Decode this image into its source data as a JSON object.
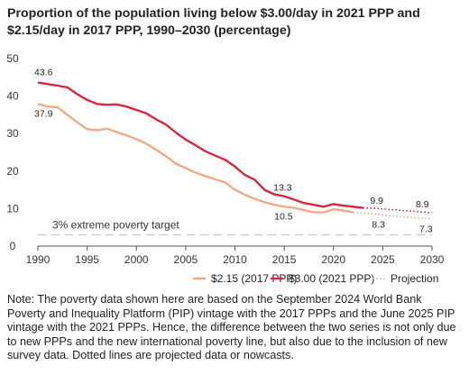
{
  "title": "Proportion of the population living below $3.00/day in 2021 PPP and $2.15/day in 2017 PPP, 1990–2030 (percentage)",
  "note": "Note: The poverty data shown here are based on the September 2024 World Bank Poverty and Inequality Platform (PIP) vintage with the 2017 PPPs and the June 2025 PIP vintage with the 2021 PPPs. Hence, the difference between the two series is not only due to new PPPs and the new international poverty line, but also due to the inclusion of new survey data. Dotted lines are projected data or nowcasts.",
  "colors": {
    "series_2017": "#eeaa88",
    "series_2021": "#d7263d",
    "projection": "#bdbdbd",
    "target": "#c8c8c8"
  },
  "chart_data": {
    "type": "line",
    "title": "Proportion of the population living below $3.00/day in 2021 PPP and $2.15/day in 2017 PPP, 1990–2030 (percentage)",
    "xlim": [
      1990,
      2030
    ],
    "ylim": [
      0,
      50
    ],
    "x_ticks": [
      1990,
      1995,
      2000,
      2005,
      2010,
      2015,
      2020,
      2025,
      2030
    ],
    "y_ticks": [
      0,
      10,
      20,
      30,
      40,
      50
    ],
    "grid": false,
    "legend_position": "bottom",
    "series": [
      {
        "name": "$2.15 (2017 PPP)",
        "color": "#eeaa88",
        "x": [
          1990,
          1991,
          1992,
          1993,
          1994,
          1995,
          1996,
          1997,
          1998,
          1999,
          2000,
          2001,
          2002,
          2003,
          2004,
          2005,
          2006,
          2007,
          2008,
          2009,
          2010,
          2011,
          2012,
          2013,
          2014,
          2015,
          2016,
          2017,
          2018,
          2019,
          2020,
          2021,
          2022
        ],
        "y": [
          37.9,
          37.2,
          37.0,
          35.0,
          33.0,
          31.2,
          30.9,
          31.3,
          30.4,
          29.5,
          28.5,
          27.3,
          25.7,
          24.0,
          22.0,
          20.8,
          19.6,
          18.7,
          17.8,
          17.0,
          15.0,
          13.7,
          12.6,
          11.7,
          11.0,
          10.5,
          10.2,
          9.6,
          9.0,
          9.0,
          9.8,
          9.5,
          9.0
        ],
        "projection": {
          "x": [
            2022,
            2023,
            2024,
            2025,
            2026,
            2027,
            2028,
            2029,
            2030
          ],
          "y": [
            9.0,
            8.8,
            8.6,
            8.3,
            8.0,
            7.8,
            7.6,
            7.4,
            7.3
          ]
        }
      },
      {
        "name": "$3.00 (2021 PPP)",
        "color": "#d7263d",
        "x": [
          1990,
          1991,
          1992,
          1993,
          1994,
          1995,
          1996,
          1997,
          1998,
          1999,
          2000,
          2001,
          2002,
          2003,
          2004,
          2005,
          2006,
          2007,
          2008,
          2009,
          2010,
          2011,
          2012,
          2013,
          2014,
          2015,
          2016,
          2017,
          2018,
          2019,
          2020,
          2021,
          2022,
          2023
        ],
        "y": [
          43.6,
          43.2,
          42.8,
          42.3,
          40.5,
          39.0,
          37.9,
          37.7,
          37.8,
          37.2,
          36.3,
          35.4,
          33.8,
          32.4,
          30.3,
          28.4,
          26.9,
          25.3,
          24.1,
          23.0,
          21.2,
          19.0,
          17.7,
          15.0,
          13.8,
          13.3,
          12.4,
          11.5,
          11.0,
          10.5,
          11.2,
          10.8,
          10.5,
          10.2
        ],
        "projection": {
          "x": [
            2023,
            2024,
            2025,
            2026,
            2027,
            2028,
            2029,
            2030
          ],
          "y": [
            10.2,
            10.1,
            9.9,
            9.7,
            9.5,
            9.3,
            9.1,
            8.9
          ]
        }
      }
    ],
    "data_labels": [
      {
        "text": "43.6",
        "x": 1990,
        "y": 43.6,
        "series": "$3.00 (2021 PPP)"
      },
      {
        "text": "37.9",
        "x": 1990,
        "y": 37.9,
        "series": "$2.15 (2017 PPP)"
      },
      {
        "text": "13.3",
        "x": 2015,
        "y": 13.3,
        "series": "$3.00 (2021 PPP)"
      },
      {
        "text": "10.5",
        "x": 2015,
        "y": 10.5,
        "series": "$2.15 (2017 PPP)"
      },
      {
        "text": "9.9",
        "x": 2025,
        "y": 9.9,
        "series": "$3.00 (2021 PPP)"
      },
      {
        "text": "8.3",
        "x": 2025,
        "y": 8.3,
        "series": "$2.15 (2017 PPP)"
      },
      {
        "text": "8.9",
        "x": 2030,
        "y": 8.9,
        "series": "$3.00 (2021 PPP)"
      },
      {
        "text": "7.3",
        "x": 2030,
        "y": 7.3,
        "series": "$2.15 (2017 PPP)"
      }
    ],
    "reference_line": {
      "label": "3% extreme poverty target",
      "y": 3
    },
    "legend": [
      "$2.15 (2017 PPP)",
      "$3.00 (2021 PPP)",
      "Projection"
    ]
  }
}
